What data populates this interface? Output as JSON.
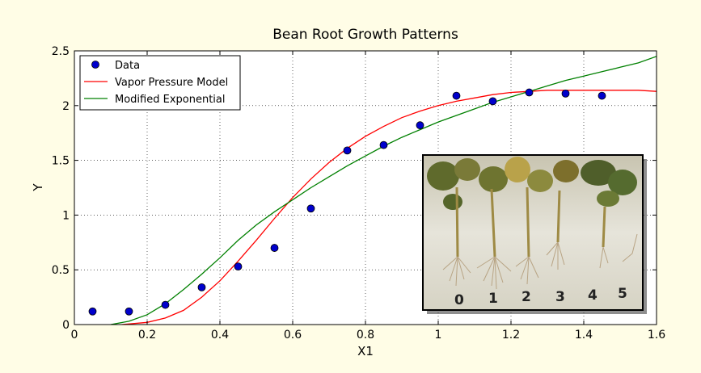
{
  "chart_data": {
    "type": "scatter",
    "title": "Bean Root Growth Patterns",
    "xlabel": "X1",
    "ylabel": "Y",
    "xlim": [
      0,
      1.6
    ],
    "ylim": [
      0,
      2.5
    ],
    "xticks": [
      0,
      0.2,
      0.4,
      0.6,
      0.8,
      1,
      1.2,
      1.4,
      1.6
    ],
    "yticks": [
      0,
      0.5,
      1,
      1.5,
      2,
      2.5
    ],
    "xtick_labels": [
      "0",
      "0.2",
      "0.4",
      "0.6",
      "0.8",
      "1",
      "1.2",
      "1.4",
      "1.6"
    ],
    "ytick_labels": [
      "0",
      "0.5",
      "1",
      "1.5",
      "2",
      "2.5"
    ],
    "grid": true,
    "legend_position": "top-left",
    "series": [
      {
        "name": "Data",
        "kind": "scatter",
        "color": "#0000cc",
        "x": [
          0.05,
          0.15,
          0.25,
          0.35,
          0.45,
          0.55,
          0.65,
          0.75,
          0.85,
          0.95,
          1.05,
          1.15,
          1.25,
          1.35,
          1.45
        ],
        "y": [
          0.12,
          0.12,
          0.18,
          0.34,
          0.53,
          0.7,
          1.06,
          1.59,
          1.64,
          1.82,
          2.09,
          2.04,
          2.12,
          2.11,
          2.09
        ]
      },
      {
        "name": "Vapor Pressure Model",
        "kind": "line",
        "color": "#ff0000",
        "x": [
          0.13,
          0.2,
          0.25,
          0.3,
          0.35,
          0.4,
          0.45,
          0.5,
          0.55,
          0.6,
          0.65,
          0.7,
          0.75,
          0.8,
          0.85,
          0.9,
          0.95,
          1.0,
          1.05,
          1.1,
          1.15,
          1.2,
          1.25,
          1.3,
          1.35,
          1.4,
          1.45,
          1.5,
          1.55,
          1.6
        ],
        "y": [
          0.0,
          0.02,
          0.06,
          0.13,
          0.25,
          0.4,
          0.58,
          0.77,
          0.97,
          1.16,
          1.33,
          1.48,
          1.61,
          1.72,
          1.81,
          1.89,
          1.95,
          2.0,
          2.04,
          2.07,
          2.1,
          2.12,
          2.13,
          2.14,
          2.14,
          2.14,
          2.14,
          2.14,
          2.14,
          2.13
        ]
      },
      {
        "name": "Modified Exponential",
        "kind": "line",
        "color": "#008000",
        "x": [
          0.1,
          0.15,
          0.2,
          0.25,
          0.3,
          0.35,
          0.4,
          0.45,
          0.5,
          0.55,
          0.6,
          0.65,
          0.7,
          0.75,
          0.8,
          0.85,
          0.9,
          0.95,
          1.0,
          1.05,
          1.1,
          1.15,
          1.2,
          1.25,
          1.3,
          1.35,
          1.4,
          1.45,
          1.5,
          1.55,
          1.6
        ],
        "y": [
          0.0,
          0.03,
          0.09,
          0.19,
          0.32,
          0.46,
          0.61,
          0.77,
          0.91,
          1.03,
          1.14,
          1.25,
          1.35,
          1.45,
          1.54,
          1.63,
          1.71,
          1.78,
          1.85,
          1.91,
          1.97,
          2.03,
          2.08,
          2.13,
          2.18,
          2.23,
          2.27,
          2.31,
          2.35,
          2.39,
          2.45
        ]
      }
    ],
    "inset_image_labels": [
      "0",
      "1",
      "2",
      "3",
      "4",
      "5"
    ]
  }
}
